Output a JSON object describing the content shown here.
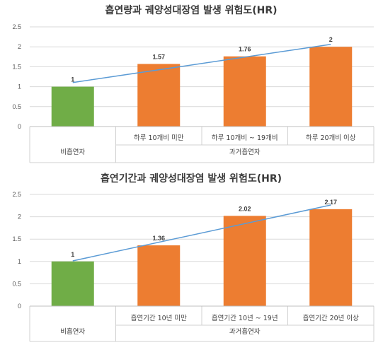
{
  "chart_data": [
    {
      "type": "bar",
      "title": "흡연량과 궤양성대장염 발생 위험도(HR)",
      "categories": [
        "비흡연자",
        "하루 10개비 미만",
        "하루 10개비 ~ 19개비",
        "하루 20개비 이상"
      ],
      "groups": [
        {
          "label": "비흡연자",
          "span": 1
        },
        {
          "label": "과거흡연자",
          "span": 3
        }
      ],
      "values": [
        1,
        1.57,
        1.76,
        2
      ],
      "value_labels": [
        "1",
        "1.57",
        "1.76",
        "2"
      ],
      "bar_colors": [
        "#70ad47",
        "#ed7d31",
        "#ed7d31",
        "#ed7d31"
      ],
      "trendline": true,
      "trendline_color": "#5b9bd5",
      "ylim": [
        0,
        2.5
      ],
      "yticks": [
        "0",
        "0.5",
        "1",
        "1.5",
        "2",
        "2.5"
      ],
      "grid": true
    },
    {
      "type": "bar",
      "title": "흡연기간과 궤양성대장염 발생 위험도(HR)",
      "categories": [
        "비흡연자",
        "흡연기간 10년 미만",
        "흡연기간 10년 ~ 19년",
        "흡연기간 20년 이상"
      ],
      "groups": [
        {
          "label": "비흡연자",
          "span": 1
        },
        {
          "label": "과거흡연자",
          "span": 3
        }
      ],
      "values": [
        1,
        1.36,
        2.02,
        2.17
      ],
      "value_labels": [
        "1",
        "1.36",
        "2.02",
        "2.17"
      ],
      "bar_colors": [
        "#70ad47",
        "#ed7d31",
        "#ed7d31",
        "#ed7d31"
      ],
      "trendline": true,
      "trendline_color": "#5b9bd5",
      "ylim": [
        0,
        2.5
      ],
      "yticks": [
        "0",
        "0.5",
        "1",
        "1.5",
        "2",
        "2.5"
      ],
      "grid": true
    }
  ]
}
